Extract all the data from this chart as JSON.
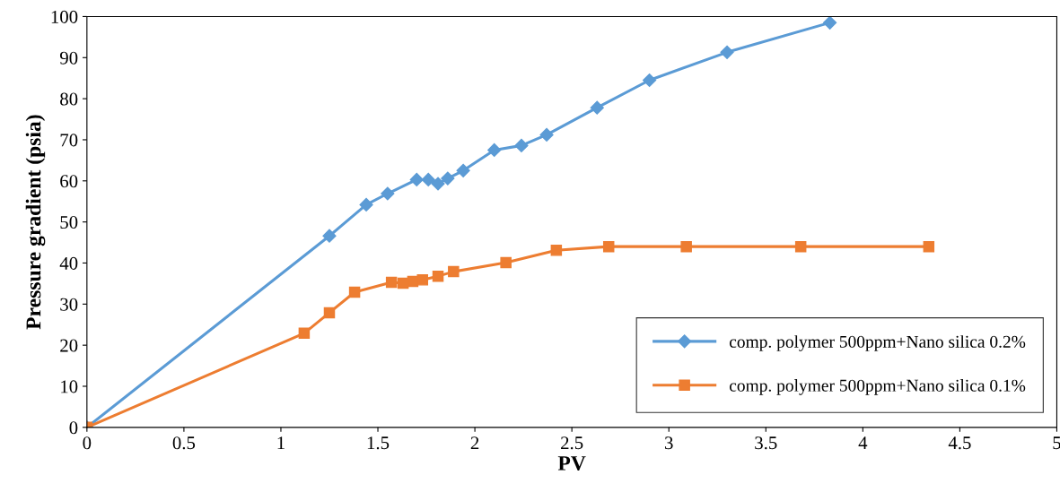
{
  "chart_data": {
    "type": "line",
    "xlabel": "PV",
    "ylabel": "Pressure gradient (psia)",
    "xlim": [
      0,
      5
    ],
    "xticks": [
      0,
      0.5,
      1,
      1.5,
      2,
      2.5,
      3,
      3.5,
      4,
      4.5,
      5
    ],
    "ylim": [
      0,
      100
    ],
    "yticks": [
      0,
      10,
      20,
      30,
      40,
      50,
      60,
      70,
      80,
      90,
      100
    ],
    "grid": false,
    "legend": "bottom right",
    "series": [
      {
        "name": "comp. polymer 500ppm+Nano silica 0.2%",
        "color": "#5b9bd5",
        "marker": "diamond",
        "x": [
          0,
          1.25,
          1.44,
          1.55,
          1.7,
          1.76,
          1.81,
          1.86,
          1.94,
          2.1,
          2.24,
          2.37,
          2.63,
          2.9,
          3.3,
          3.83
        ],
        "values": [
          0,
          46.6,
          54.2,
          56.9,
          60.3,
          60.3,
          59.3,
          60.6,
          62.5,
          67.5,
          68.6,
          71.2,
          77.8,
          84.5,
          91.3,
          98.5
        ]
      },
      {
        "name": "comp. polymer 500ppm+Nano silica 0.1%",
        "color": "#ed7d31",
        "marker": "square",
        "x": [
          0,
          1.12,
          1.25,
          1.38,
          1.57,
          1.63,
          1.68,
          1.73,
          1.81,
          1.89,
          2.16,
          2.42,
          2.69,
          3.09,
          3.68,
          4.34
        ],
        "values": [
          0,
          22.9,
          27.9,
          32.9,
          35.3,
          35.1,
          35.5,
          35.9,
          36.8,
          37.9,
          40.1,
          43.1,
          44.0,
          44.0,
          44.0,
          44.0
        ]
      }
    ]
  }
}
